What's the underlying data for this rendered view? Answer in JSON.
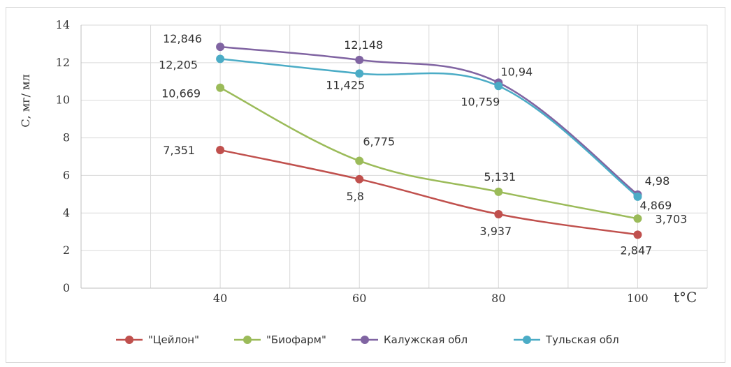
{
  "chart_data": {
    "type": "line",
    "x": [
      40,
      60,
      80,
      100
    ],
    "xlim": [
      20,
      110
    ],
    "ylim": [
      0,
      14
    ],
    "yticks": [
      0,
      2,
      4,
      6,
      8,
      10,
      12,
      14
    ],
    "xticks": [
      40,
      60,
      80,
      100
    ],
    "xlabel": "t°C",
    "ylabel": "С, мг/ мл",
    "grid": true,
    "legend_position": "bottom",
    "series": [
      {
        "name": "\"Цейлон\"",
        "color": "#c0504d",
        "values": [
          7.351,
          5.8,
          3.937,
          2.847
        ],
        "labels": [
          "7,351",
          "5,8",
          "3,937",
          "2,847"
        ]
      },
      {
        "name": "\"Биофарм\"",
        "color": "#9bbb59",
        "values": [
          10.669,
          6.775,
          5.131,
          3.703
        ],
        "labels": [
          "10,669",
          "6,775",
          "5,131",
          "3,703"
        ]
      },
      {
        "name": "Калужская обл",
        "color": "#8064a2",
        "values": [
          12.846,
          12.148,
          10.94,
          4.98
        ],
        "labels": [
          "12,846",
          "12,148",
          "10,94",
          "4,98"
        ]
      },
      {
        "name": "Тульская обл",
        "color": "#4bacc6",
        "values": [
          12.205,
          11.425,
          10.759,
          4.869
        ],
        "labels": [
          "12,205",
          "11,425",
          "10,759",
          "4,869"
        ]
      }
    ]
  }
}
